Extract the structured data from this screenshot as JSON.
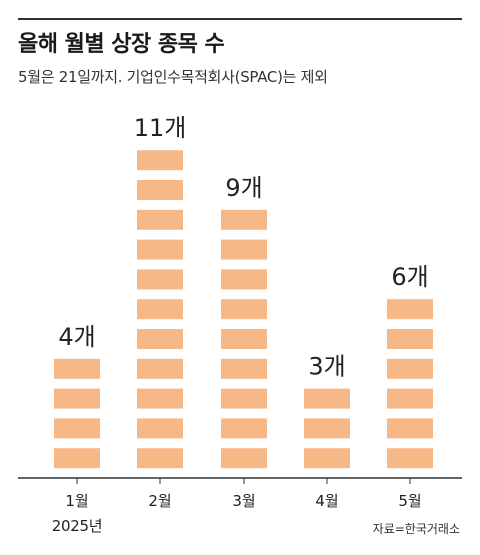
{
  "title": "올해 월별 상장 종목 수",
  "subtitle": "5월은 21일까지. 기업인수목적회사(SPAC)는 제외",
  "source": "자료=한국거래소",
  "year_label": "2025년",
  "colors": {
    "bar": "#f7b888",
    "axis": "#333333",
    "text": "#222222"
  },
  "chart_data": {
    "type": "bar",
    "title": "올해 월별 상장 종목 수",
    "categories": [
      "1월",
      "2월",
      "3월",
      "4월",
      "5월"
    ],
    "values": [
      4,
      11,
      9,
      3,
      6
    ],
    "value_labels": [
      "4개",
      "11개",
      "9개",
      "3개",
      "6개"
    ],
    "xlabel": "",
    "ylabel": "",
    "ylim": [
      0,
      11
    ],
    "grid": false,
    "legend": "none"
  }
}
